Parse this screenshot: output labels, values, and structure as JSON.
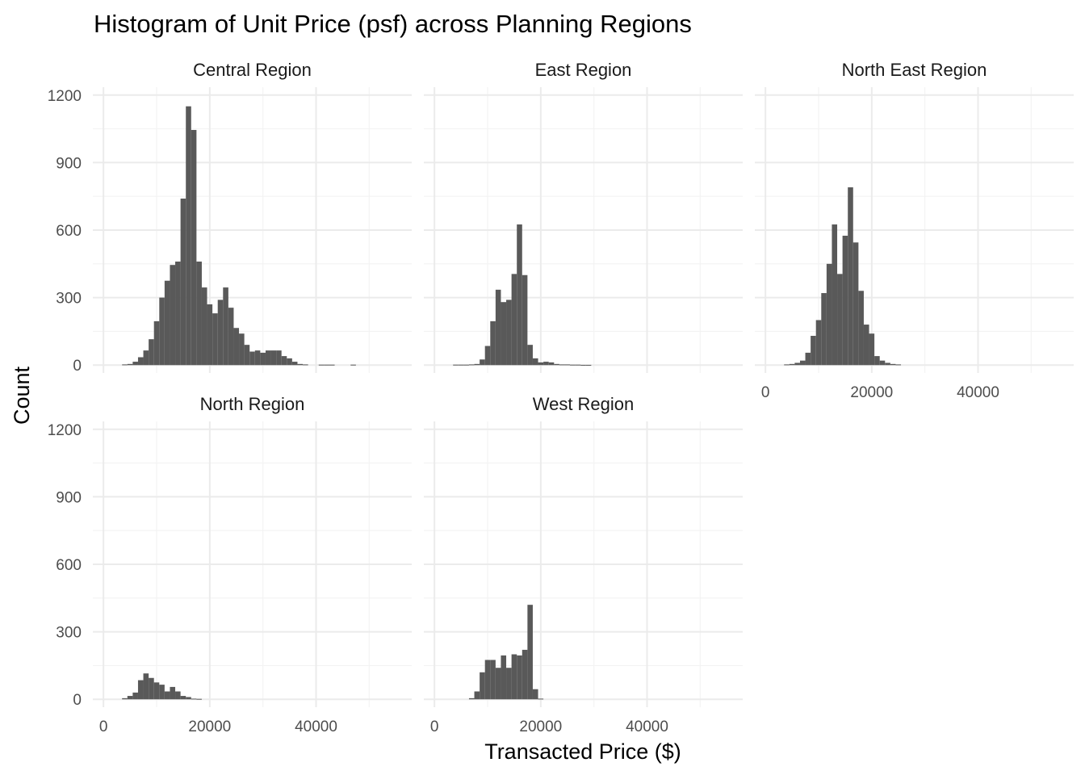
{
  "chart_data": {
    "type": "bar",
    "title": "Histogram of Unit Price (psf) across Planning Regions",
    "xlabel": "Transacted Price ($)",
    "ylabel": "Count",
    "xlim": [
      -2000,
      58000
    ],
    "ylim": [
      -35,
      1235
    ],
    "bin_width": 1000,
    "bin_start": 3500,
    "x_ticks": [
      0,
      20000,
      40000
    ],
    "x_tick_labels": [
      "0",
      "20000",
      "40000"
    ],
    "y_ticks": [
      0,
      300,
      600,
      900,
      1200
    ],
    "y_tick_labels": [
      "0",
      "300",
      "600",
      "900",
      "1200"
    ],
    "bar_color": "#595959",
    "panels": [
      {
        "name": "Central Region",
        "counts": [
          3,
          5,
          15,
          35,
          65,
          115,
          195,
          300,
          375,
          445,
          460,
          740,
          1150,
          1045,
          460,
          345,
          270,
          230,
          290,
          345,
          255,
          165,
          140,
          90,
          60,
          65,
          55,
          65,
          65,
          65,
          40,
          30,
          15,
          5,
          3,
          0,
          0,
          2,
          2,
          2,
          0,
          0,
          0,
          2,
          0,
          0,
          0,
          0,
          0,
          0,
          0,
          0
        ]
      },
      {
        "name": "East Region",
        "counts": [
          2,
          2,
          2,
          3,
          5,
          25,
          85,
          195,
          335,
          280,
          290,
          405,
          625,
          400,
          90,
          30,
          12,
          15,
          12,
          5,
          3,
          3,
          2,
          2,
          1,
          1,
          0,
          0,
          0,
          0,
          0,
          0,
          0,
          0,
          0,
          0,
          0,
          0,
          0,
          0,
          0,
          0,
          0,
          0,
          0,
          0,
          0,
          0,
          0,
          0,
          0,
          0
        ]
      },
      {
        "name": "North East Region",
        "counts": [
          3,
          5,
          10,
          20,
          55,
          130,
          200,
          320,
          450,
          625,
          405,
          575,
          790,
          545,
          330,
          180,
          140,
          40,
          20,
          10,
          5,
          3,
          0,
          0,
          0,
          0,
          0,
          0,
          0,
          0,
          0,
          0,
          0,
          0,
          0,
          0,
          0,
          0,
          0,
          0,
          0,
          0,
          0,
          0,
          0,
          0,
          0,
          0,
          0,
          0,
          0,
          0
        ]
      },
      {
        "name": "North Region",
        "counts": [
          5,
          15,
          30,
          85,
          115,
          95,
          75,
          65,
          35,
          55,
          35,
          15,
          10,
          3,
          2,
          0,
          0,
          0,
          0,
          0,
          0,
          0,
          0,
          0,
          0,
          0,
          0,
          0,
          0,
          0,
          0,
          0,
          0,
          0,
          0,
          0,
          0,
          0,
          0,
          0,
          0,
          0,
          0,
          0,
          0,
          0,
          0,
          0,
          0,
          0,
          0,
          0
        ]
      },
      {
        "name": "West Region",
        "counts": [
          0,
          0,
          0,
          5,
          35,
          120,
          175,
          175,
          140,
          195,
          140,
          200,
          195,
          220,
          420,
          45,
          3,
          0,
          0,
          0,
          0,
          0,
          0,
          0,
          0,
          0,
          0,
          0,
          0,
          0,
          0,
          0,
          0,
          0,
          0,
          0,
          0,
          0,
          0,
          0,
          0,
          0,
          0,
          0,
          0,
          0,
          0,
          0,
          0,
          0,
          0,
          0
        ]
      }
    ]
  }
}
